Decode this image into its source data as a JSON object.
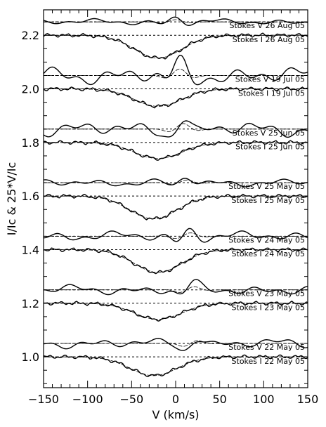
{
  "chart_data": {
    "type": "line",
    "xlabel": "V (km/s)",
    "ylabel": "I/Ic & 25*V/Ic",
    "xlim": [
      -150,
      150
    ],
    "ylim": [
      0.885,
      2.295
    ],
    "x_ticks": [
      -150,
      -100,
      -50,
      0,
      50,
      100,
      150
    ],
    "x_tick_labels": [
      "−150",
      "−100",
      "−50",
      "0",
      "50",
      "100",
      "150"
    ],
    "y_ticks": [
      1.0,
      1.2,
      1.4,
      1.6,
      1.8,
      2.0,
      2.2
    ],
    "y_tick_labels": [
      "1.0",
      "1.2",
      "1.4",
      "1.6",
      "1.8",
      "2.0",
      "2.2"
    ],
    "grid": false,
    "reference_lines": [
      2.25,
      2.2,
      2.05,
      2.0,
      1.85,
      1.8,
      1.65,
      1.6,
      1.45,
      1.4,
      1.25,
      1.2,
      1.05,
      1.0
    ],
    "panels": [
      {
        "label": "Stokes V 26 Aug 05",
        "kind": "V",
        "baseline": 2.25,
        "amp": 0.012,
        "seed": 1,
        "label_y": 2.237
      },
      {
        "label": "Stokes I 26 Aug 05",
        "kind": "I",
        "baseline": 2.2,
        "depth": 0.085,
        "center": -20,
        "seed": 2,
        "label_y": 2.185
      },
      {
        "label": "Stokes V 19 Jul 05",
        "kind": "V",
        "baseline": 2.05,
        "amp": 0.035,
        "seed": 3,
        "label_y": 2.037
      },
      {
        "label": "Stokes I 19 Jul 05",
        "kind": "I",
        "baseline": 2.0,
        "depth": 0.065,
        "center": -20,
        "seed": 4,
        "label_y": 1.985
      },
      {
        "label": "Stokes V 25 Jun 05",
        "kind": "V",
        "baseline": 1.85,
        "amp": 0.03,
        "seed": 5,
        "label_y": 1.837
      },
      {
        "label": "Stokes I 25 Jun 05",
        "kind": "I",
        "baseline": 1.8,
        "depth": 0.06,
        "center": -20,
        "seed": 6,
        "label_y": 1.785
      },
      {
        "label": "Stokes V 25 May 05",
        "kind": "V",
        "baseline": 1.65,
        "amp": 0.015,
        "seed": 7,
        "label_y": 1.637
      },
      {
        "label": "Stokes I 25 May 05",
        "kind": "I",
        "baseline": 1.6,
        "depth": 0.085,
        "center": -25,
        "seed": 8,
        "label_y": 1.585
      },
      {
        "label": "Stokes V 24 May 05",
        "kind": "V",
        "baseline": 1.45,
        "amp": 0.02,
        "seed": 9,
        "label_y": 1.437
      },
      {
        "label": "Stokes I 24 May 05",
        "kind": "I",
        "baseline": 1.4,
        "depth": 0.085,
        "center": -20,
        "seed": 10,
        "label_y": 1.385
      },
      {
        "label": "Stokes V 23 May 05",
        "kind": "V",
        "baseline": 1.25,
        "amp": 0.02,
        "seed": 11,
        "label_y": 1.237
      },
      {
        "label": "Stokes I 23 May 05",
        "kind": "I",
        "baseline": 1.2,
        "depth": 0.06,
        "center": -20,
        "seed": 12,
        "label_y": 1.185
      },
      {
        "label": "Stokes V 22 May 05",
        "kind": "V",
        "baseline": 1.05,
        "amp": 0.02,
        "seed": 13,
        "label_y": 1.037
      },
      {
        "label": "Stokes I 22 May 05",
        "kind": "I",
        "baseline": 1.0,
        "depth": 0.07,
        "center": -25,
        "seed": 14,
        "label_y": 0.985
      }
    ]
  }
}
